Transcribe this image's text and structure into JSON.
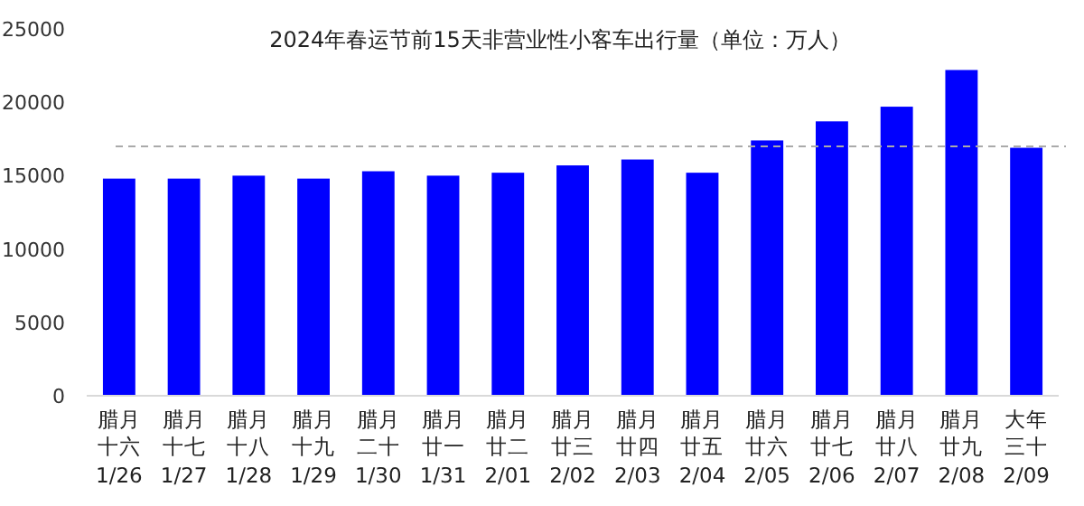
{
  "chart_data": {
    "type": "bar",
    "title": "2024年春运节前15天非营业性小客车出行量（单位：万人）",
    "categories": [
      "腊月十六1/26",
      "腊月十七1/27",
      "腊月十八1/28",
      "腊月十九1/29",
      "腊月二十1/30",
      "腊月廿一1/31",
      "腊月廿二2/01",
      "腊月廿三2/02",
      "腊月廿四2/03",
      "腊月廿五2/04",
      "腊月廿六2/05",
      "腊月廿七2/06",
      "腊月廿八2/07",
      "腊月廿九2/08",
      "大年三十2/09"
    ],
    "values": [
      14800,
      14800,
      15000,
      14800,
      15300,
      15000,
      15200,
      15700,
      16100,
      15200,
      17400,
      18700,
      19700,
      22200,
      16900
    ],
    "color": "#0000ff",
    "ylim": [
      0,
      25000
    ],
    "yticks": [
      0,
      5000,
      10000,
      15000,
      20000,
      25000
    ],
    "ref_lines": [
      {
        "axis": "y",
        "value": 17000,
        "color": "#aaaaaa",
        "line_style": "dashed"
      }
    ]
  }
}
